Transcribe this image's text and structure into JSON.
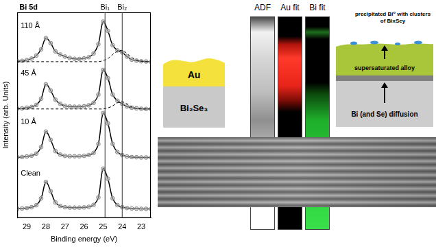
{
  "chart_data": {
    "type": "line",
    "title": "Bi 5d",
    "x_label": "Binding energy (eV)",
    "y_label": "Intensity (arb. Units)",
    "x": [
      29.5,
      29.25,
      29,
      28.75,
      28.5,
      28.25,
      28,
      27.75,
      27.5,
      27.25,
      27,
      26.75,
      26.5,
      26.25,
      26,
      25.75,
      25.5,
      25.25,
      25,
      24.75,
      24.5,
      24.25,
      24,
      23.75,
      23.5,
      23.25,
      23,
      22.75,
      22.5
    ],
    "series": [
      {
        "name": "Clean",
        "color": "#000000",
        "marker": "circle",
        "values": [
          4.5,
          4.6,
          4.8,
          5.2,
          6.2,
          9.5,
          17.5,
          13,
          7.5,
          5.8,
          5.2,
          5.0,
          5.0,
          5.0,
          5.1,
          5.4,
          6.3,
          10,
          24,
          19,
          9.5,
          6.2,
          5.2,
          4.8,
          4.6,
          4.5,
          4.4,
          4.4,
          4.4
        ]
      },
      {
        "name": "10 Å",
        "color": "#000000",
        "marker": "circle",
        "values": [
          29.5,
          29.6,
          29.9,
          30.3,
          31.3,
          34.5,
          42,
          38,
          32.5,
          30.8,
          30.2,
          30.0,
          30.0,
          30.0,
          30.2,
          30.6,
          31.6,
          36,
          51,
          46,
          36,
          32,
          30.6,
          29.9,
          29.6,
          29.5,
          29.4,
          29.4,
          29.4
        ]
      },
      {
        "name": "45 Å",
        "color": "#000000",
        "marker": "circle",
        "values": [
          53.2,
          53.3,
          53.6,
          54,
          55,
          58,
          65,
          62,
          57.5,
          55.5,
          54.5,
          54.2,
          54.1,
          54.1,
          54.3,
          54.8,
          56,
          60,
          72,
          68,
          60,
          57,
          55.5,
          54.2,
          53.6,
          53.3,
          53.1,
          53,
          53
        ]
      },
      {
        "color": "#000000",
        "line_style": "dashed",
        "values": [
          53,
          53,
          53,
          53,
          53,
          53,
          53,
          53,
          53,
          53,
          53,
          53,
          53,
          53,
          53,
          53,
          53,
          53,
          53,
          53.5,
          54.5,
          56,
          56.5,
          55.5,
          54,
          53.3,
          53,
          53,
          53
        ]
      },
      {
        "name": "110 Å",
        "color": "#000000",
        "marker": "circle",
        "values": [
          76.2,
          76.4,
          76.8,
          77.5,
          79,
          82,
          87.5,
          85,
          81,
          79.5,
          78.5,
          77.8,
          77.4,
          77.3,
          77.6,
          78.2,
          80,
          84.5,
          95.5,
          91,
          84,
          81.5,
          80.5,
          78.5,
          77,
          76.5,
          76.2,
          76.1,
          76
        ]
      },
      {
        "color": "#000000",
        "line_style": "dashed",
        "values": [
          76,
          76,
          76,
          76,
          76,
          76,
          76,
          76,
          76,
          76,
          76,
          76,
          76,
          76,
          76,
          76,
          76,
          76,
          76.5,
          77.5,
          79.5,
          81,
          81.5,
          80,
          78,
          76.8,
          76.3,
          76,
          76
        ]
      }
    ],
    "xlim": [
      29.5,
      22.5
    ],
    "xticks": [
      29,
      28,
      27,
      26,
      25,
      24,
      23
    ],
    "ylim": [
      0,
      100
    ],
    "tick_labels": "x",
    "grid": false,
    "annotations": [
      {
        "label": "Bi₁",
        "x": 24.9
      },
      {
        "label": "Bi₂",
        "x": 24.0
      }
    ]
  },
  "diagram": {
    "initial": {
      "top": "Au",
      "bottom": "Bi₂Se₃"
    },
    "columns": [
      "ADF",
      "Au fit",
      "Bi fit"
    ],
    "final": {
      "top_label": "precipitated Bi⁰ with clusters of BixSey",
      "middle_label": "supersaturated alloy",
      "bottom_label": "Bi (and Se) diffusion"
    }
  }
}
